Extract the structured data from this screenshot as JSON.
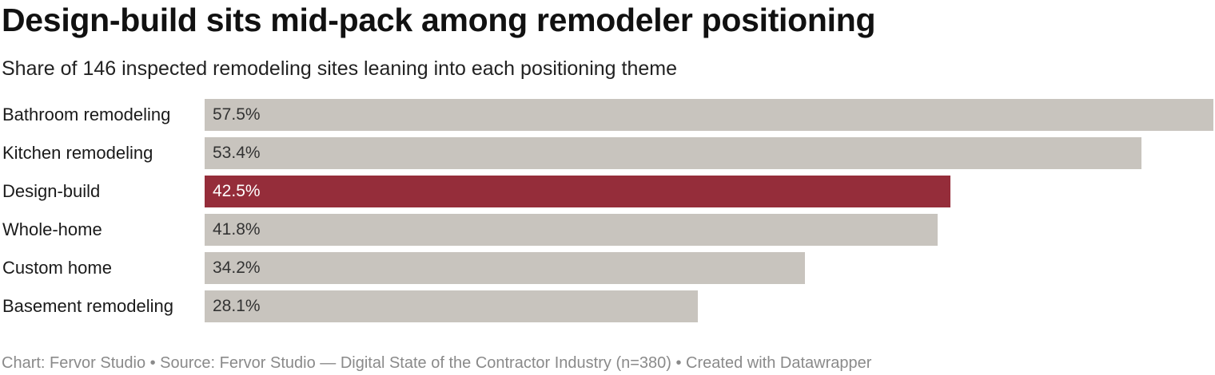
{
  "title": "Design-build sits mid-pack among remodeler positioning",
  "subtitle": "Share of 146 inspected remodeling sites leaning into each positioning theme",
  "footer": "Chart: Fervor Studio • Source: Fervor Studio — Digital State of the Contractor Industry (n=380) • Created with Datawrapper",
  "colors": {
    "default_bar": "#c8c4be",
    "highlight_bar": "#952d3a",
    "default_value_text": "#333333",
    "highlight_value_text": "#ffffff"
  },
  "chart_data": {
    "type": "bar",
    "orientation": "horizontal",
    "title": "Design-build sits mid-pack among remodeler positioning",
    "subtitle": "Share of 146 inspected remodeling sites leaning into each positioning theme",
    "categories": [
      "Bathroom remodeling",
      "Kitchen remodeling",
      "Design-build",
      "Whole-home",
      "Custom home",
      "Basement remodeling"
    ],
    "values": [
      57.5,
      53.4,
      42.5,
      41.8,
      34.2,
      28.1
    ],
    "value_labels": [
      "57.5%",
      "53.4%",
      "42.5%",
      "41.8%",
      "34.2%",
      "28.1%"
    ],
    "highlight": "Design-build",
    "xlim": [
      0,
      57.5
    ],
    "grid": false,
    "legend": "none"
  }
}
